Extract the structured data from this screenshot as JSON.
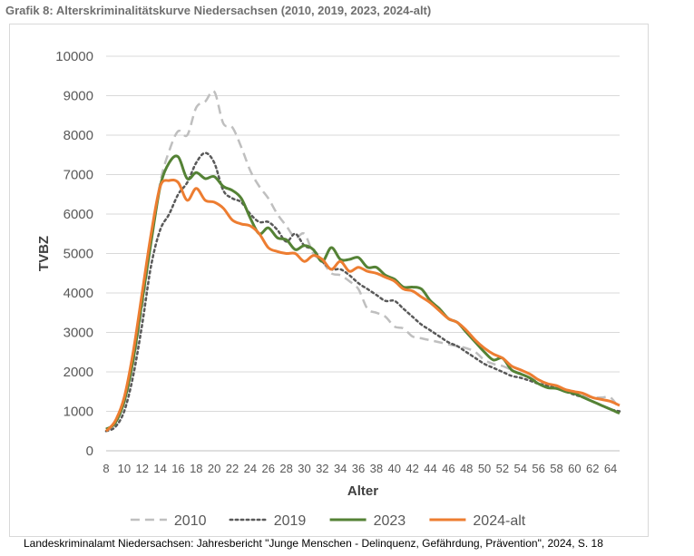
{
  "title": "Grafik 8: Alterskriminalitätskurve Niedersachsen (2010, 2019, 2023, 2024-alt)",
  "source_note": "Landeskriminalamt Niedersachsen: Jahresbericht \"Junge Menschen - Delinquenz, Gefährdung, Prävention\", 2024, S. 18",
  "chart_data": {
    "type": "line",
    "xlabel": "Alter",
    "ylabel": "TVBZ",
    "xlim": [
      8,
      65
    ],
    "ylim": [
      0,
      10000
    ],
    "x_ticks": [
      8,
      10,
      12,
      14,
      16,
      18,
      20,
      22,
      24,
      26,
      28,
      30,
      32,
      34,
      36,
      38,
      40,
      42,
      44,
      46,
      48,
      50,
      52,
      54,
      56,
      58,
      60,
      62,
      64
    ],
    "y_ticks": [
      0,
      1000,
      2000,
      3000,
      4000,
      5000,
      6000,
      7000,
      8000,
      9000,
      10000
    ],
    "grid": "horizontal",
    "legend_position": "bottom",
    "series": [
      {
        "name": "2010",
        "color": "#bfbfbf",
        "style": "dashed",
        "x": [
          8,
          9,
          10,
          11,
          12,
          13,
          14,
          15,
          16,
          17,
          18,
          19,
          20,
          21,
          22,
          23,
          24,
          25,
          26,
          27,
          28,
          29,
          30,
          31,
          32,
          33,
          34,
          35,
          36,
          37,
          38,
          39,
          40,
          41,
          42,
          43,
          44,
          45,
          46,
          47,
          48,
          49,
          50,
          51,
          52,
          53,
          54,
          55,
          56,
          57,
          58,
          59,
          60,
          61,
          62,
          63,
          64,
          65
        ],
        "y": [
          550,
          700,
          1200,
          2200,
          3600,
          5300,
          6800,
          7600,
          8100,
          8000,
          8700,
          8850,
          9100,
          8300,
          8200,
          7700,
          7100,
          6700,
          6400,
          6000,
          5700,
          5400,
          5500,
          5000,
          4800,
          4500,
          4450,
          4300,
          4100,
          3600,
          3500,
          3400,
          3150,
          3100,
          2900,
          2850,
          2800,
          2750,
          2700,
          2650,
          2600,
          2500,
          2300,
          2200,
          2150,
          2050,
          1950,
          1850,
          1750,
          1700,
          1600,
          1550,
          1450,
          1400,
          1350,
          1350,
          1350,
          1050
        ]
      },
      {
        "name": "2019",
        "color": "#595959",
        "style": "dotted",
        "x": [
          8,
          9,
          10,
          11,
          12,
          13,
          14,
          15,
          16,
          17,
          18,
          19,
          20,
          21,
          22,
          23,
          24,
          25,
          26,
          27,
          28,
          29,
          30,
          31,
          32,
          33,
          34,
          35,
          36,
          37,
          38,
          39,
          40,
          41,
          42,
          43,
          44,
          45,
          46,
          47,
          48,
          49,
          50,
          51,
          52,
          53,
          54,
          55,
          56,
          57,
          58,
          59,
          60,
          61,
          62,
          63,
          64,
          65
        ],
        "y": [
          500,
          600,
          1000,
          1900,
          3200,
          4700,
          5600,
          6000,
          6500,
          6800,
          7300,
          7550,
          7300,
          6600,
          6400,
          6300,
          6000,
          5800,
          5800,
          5600,
          5300,
          5500,
          5200,
          5100,
          4800,
          4600,
          4600,
          4450,
          4250,
          4100,
          3950,
          3800,
          3800,
          3600,
          3400,
          3200,
          3050,
          2900,
          2750,
          2650,
          2500,
          2350,
          2200,
          2100,
          2000,
          1900,
          1850,
          1780,
          1700,
          1650,
          1580,
          1500,
          1420,
          1350,
          1250,
          1150,
          1050,
          1000
        ]
      },
      {
        "name": "2023",
        "color": "#548235",
        "style": "solid",
        "x": [
          8,
          9,
          10,
          11,
          12,
          13,
          14,
          15,
          16,
          17,
          18,
          19,
          20,
          21,
          22,
          23,
          24,
          25,
          26,
          27,
          28,
          29,
          30,
          31,
          32,
          33,
          34,
          35,
          36,
          37,
          38,
          39,
          40,
          41,
          42,
          43,
          44,
          45,
          46,
          47,
          48,
          49,
          50,
          51,
          52,
          53,
          54,
          55,
          56,
          57,
          58,
          59,
          60,
          61,
          62,
          63,
          64,
          65
        ],
        "y": [
          550,
          700,
          1250,
          2300,
          3800,
          5300,
          6700,
          7300,
          7450,
          6900,
          7050,
          6900,
          6950,
          6700,
          6600,
          6400,
          5900,
          5500,
          5650,
          5400,
          5350,
          5100,
          5200,
          5100,
          4800,
          5150,
          4850,
          4850,
          4900,
          4650,
          4650,
          4450,
          4350,
          4150,
          4150,
          4100,
          3800,
          3600,
          3350,
          3250,
          3000,
          2750,
          2500,
          2300,
          2350,
          2050,
          1950,
          1850,
          1700,
          1600,
          1580,
          1500,
          1450,
          1350,
          1250,
          1150,
          1050,
          950
        ]
      },
      {
        "name": "2024-alt",
        "color": "#ed7d31",
        "style": "solid",
        "x": [
          8,
          9,
          10,
          11,
          12,
          13,
          14,
          15,
          16,
          17,
          18,
          19,
          20,
          21,
          22,
          23,
          24,
          25,
          26,
          27,
          28,
          29,
          30,
          31,
          32,
          33,
          34,
          35,
          36,
          37,
          38,
          39,
          40,
          41,
          42,
          43,
          44,
          45,
          46,
          47,
          48,
          49,
          50,
          51,
          52,
          53,
          54,
          55,
          56,
          57,
          58,
          59,
          60,
          61,
          62,
          63,
          64,
          65
        ],
        "y": [
          500,
          750,
          1350,
          2500,
          4000,
          5500,
          6700,
          6850,
          6800,
          6350,
          6650,
          6350,
          6300,
          6150,
          5850,
          5750,
          5700,
          5500,
          5150,
          5050,
          5000,
          5000,
          4800,
          4950,
          4850,
          4600,
          4800,
          4550,
          4650,
          4550,
          4500,
          4400,
          4300,
          4100,
          4050,
          3900,
          3750,
          3550,
          3350,
          3250,
          3050,
          2800,
          2600,
          2450,
          2350,
          2150,
          2050,
          1950,
          1800,
          1700,
          1650,
          1550,
          1500,
          1450,
          1350,
          1300,
          1250,
          1150
        ]
      }
    ]
  }
}
